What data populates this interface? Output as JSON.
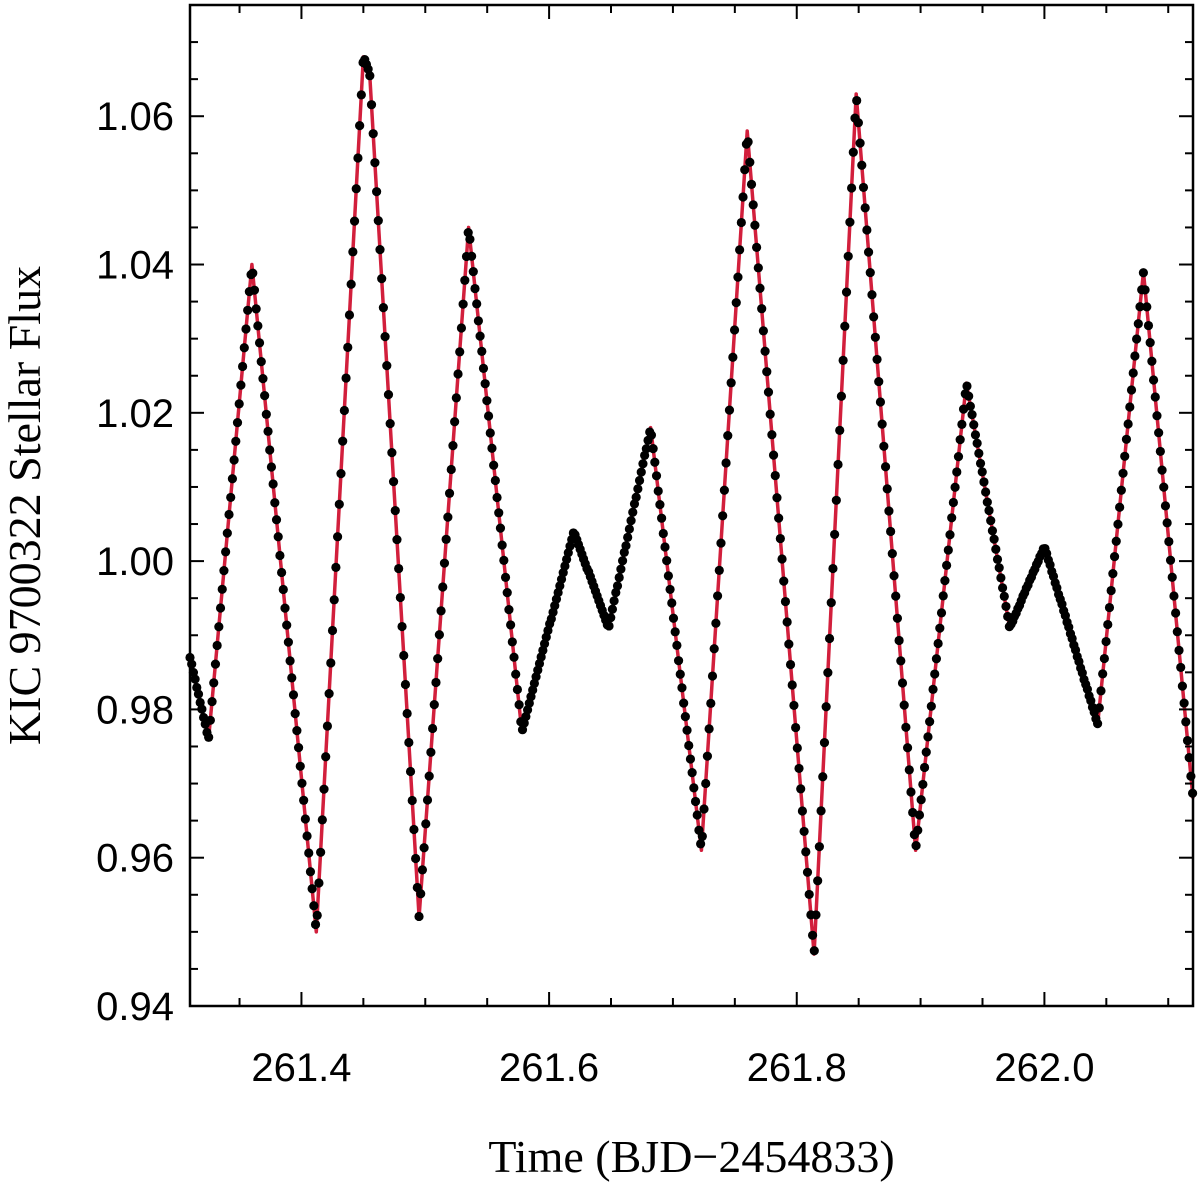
{
  "chart_data": {
    "type": "line",
    "xlabel": "Time (BJD−2454833)",
    "ylabel": "KIC 9700322 Stellar Flux",
    "xlim": [
      261.31,
      262.12
    ],
    "ylim": [
      0.94,
      1.075
    ],
    "x_ticks": [
      {
        "value": 261.4,
        "label": "261.4"
      },
      {
        "value": 261.6,
        "label": "261.6"
      },
      {
        "value": 261.8,
        "label": "261.8"
      },
      {
        "value": 262.0,
        "label": "262.0"
      }
    ],
    "y_ticks": [
      {
        "value": 0.94,
        "label": "0.94"
      },
      {
        "value": 0.96,
        "label": "0.96"
      },
      {
        "value": 0.98,
        "label": "0.98"
      },
      {
        "value": 1.0,
        "label": "1.00"
      },
      {
        "value": 1.02,
        "label": "1.02"
      },
      {
        "value": 1.04,
        "label": "1.04"
      },
      {
        "value": 1.06,
        "label": "1.06"
      }
    ],
    "grid": false,
    "legend": "none",
    "colors": {
      "model": "#d21f3c",
      "observations": "#000000"
    },
    "series": [
      {
        "kind": "line",
        "x": [
          261.31,
          261.325,
          261.36,
          261.412,
          261.45,
          261.455,
          261.495,
          261.535,
          261.578,
          261.62,
          261.648,
          261.682,
          261.723,
          261.76,
          261.814,
          261.848,
          261.896,
          261.937,
          261.972,
          262.0,
          262.043,
          262.08,
          262.12
        ],
        "y": [
          0.987,
          0.976,
          1.04,
          0.95,
          1.068,
          1.066,
          0.952,
          1.045,
          0.977,
          1.004,
          0.991,
          1.018,
          0.961,
          1.058,
          0.947,
          1.063,
          0.961,
          1.024,
          0.991,
          1.002,
          0.978,
          1.039,
          0.968
        ]
      },
      {
        "kind": "scatter",
        "x_start": 261.31,
        "x_end": 262.12,
        "cadence_days": 0.00137
      }
    ]
  }
}
